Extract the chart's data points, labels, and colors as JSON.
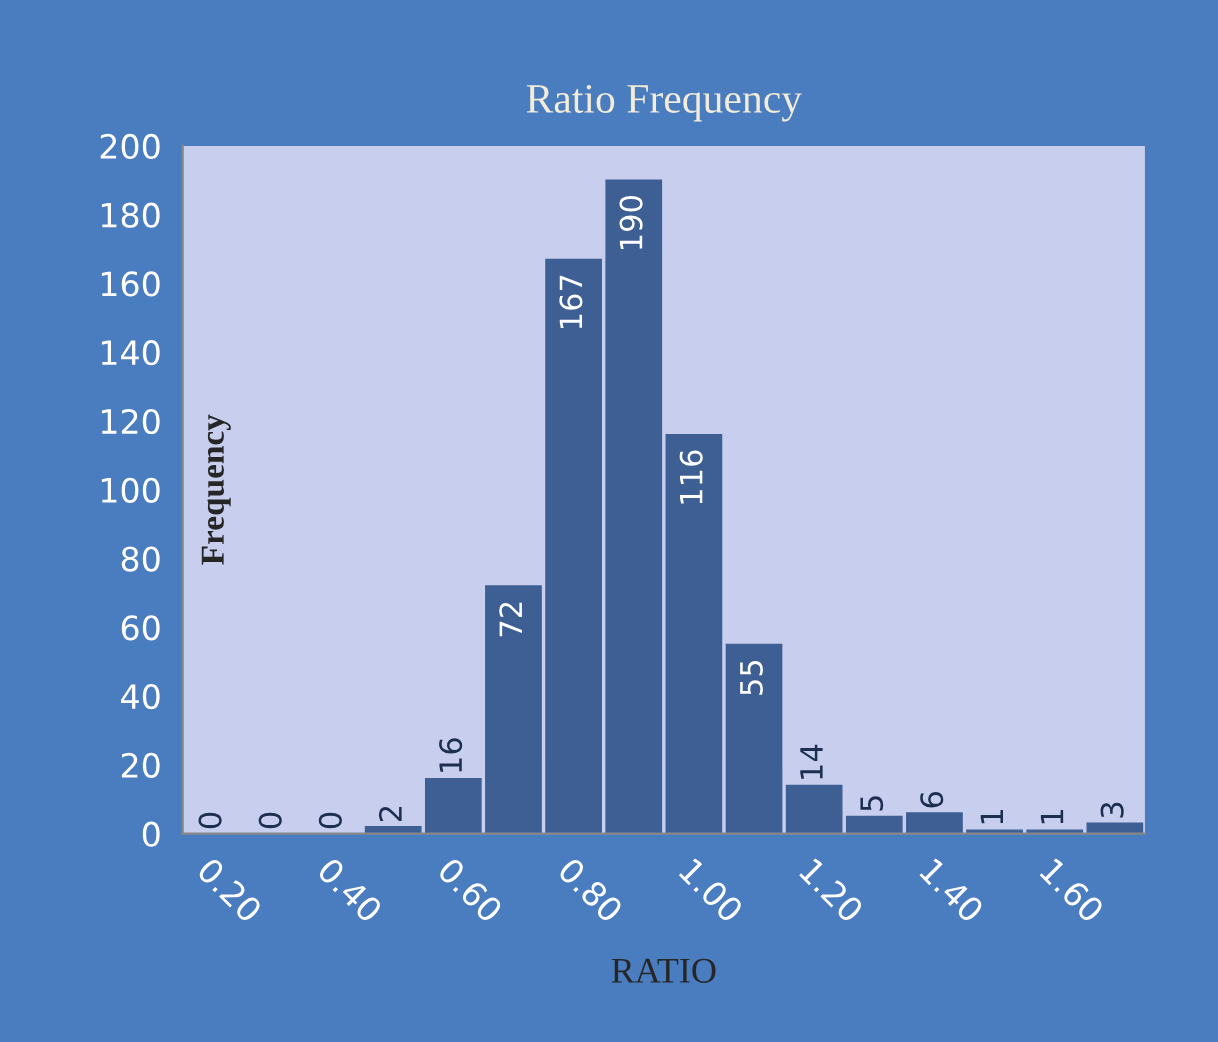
{
  "chart_data": {
    "type": "bar",
    "title": "Ratio Frequency",
    "xlabel": "RATIO",
    "ylabel": "Frequency",
    "categories": [
      "0.20",
      null,
      "0.40",
      null,
      "0.60",
      null,
      "0.80",
      null,
      "1.00",
      null,
      "1.20",
      null,
      "1.40",
      null,
      "1.60",
      null
    ],
    "values": [
      0,
      0,
      0,
      2,
      16,
      72,
      167,
      190,
      116,
      55,
      14,
      5,
      6,
      1,
      1,
      3
    ],
    "color": "#3d5f94",
    "ylim": [
      0,
      200
    ],
    "yticks": [
      0,
      20,
      40,
      60,
      80,
      100,
      120,
      140,
      160,
      180,
      200
    ],
    "data_labels": true,
    "grid": false,
    "legend": false
  }
}
